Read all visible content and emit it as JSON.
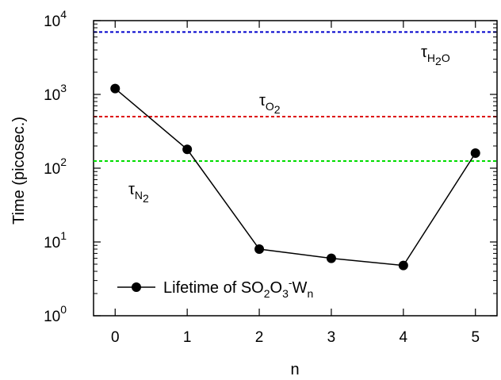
{
  "chart_data": {
    "type": "line",
    "xlabel": "n",
    "ylabel": "Time (picosec.)",
    "x_ticks": [
      "0",
      "1",
      "2",
      "3",
      "4",
      "5"
    ],
    "xlim": [
      -0.3,
      5.3
    ],
    "ylim": [
      1,
      10000
    ],
    "y_scale": "log",
    "y_ticks": [
      {
        "base": "10",
        "exp": "0",
        "value": 1
      },
      {
        "base": "10",
        "exp": "1",
        "value": 10
      },
      {
        "base": "10",
        "exp": "2",
        "value": 100
      },
      {
        "base": "10",
        "exp": "3",
        "value": 1000
      },
      {
        "base": "10",
        "exp": "4",
        "value": 10000
      }
    ],
    "grid": false,
    "legend_position": "bottom-left",
    "series": [
      {
        "name": "Lifetime of SO2O3-Wn",
        "legend_parts": {
          "a": "Lifetime of SO",
          "s1": "2",
          "b": "O",
          "s2": "3",
          "sup": "-",
          "c": "W",
          "s3": "n"
        },
        "color": "#000000",
        "marker": "circle",
        "x": [
          0,
          1,
          2,
          3,
          4,
          5
        ],
        "y": [
          1200,
          180,
          8,
          6,
          4.8,
          160
        ]
      }
    ],
    "reference_lines": [
      {
        "id": "h2o",
        "label": "τ",
        "sub": "H",
        "sub2": "2",
        "tail": "O",
        "value": 7000,
        "color": "#0000cc"
      },
      {
        "id": "o2",
        "label": "τ",
        "sub": "O",
        "sub2": "2",
        "tail": "",
        "value": 500,
        "color": "#dd0000"
      },
      {
        "id": "n2",
        "label": "τ",
        "sub": "N",
        "sub2": "2",
        "tail": "",
        "value": 125,
        "color": "#00dd00"
      }
    ]
  }
}
